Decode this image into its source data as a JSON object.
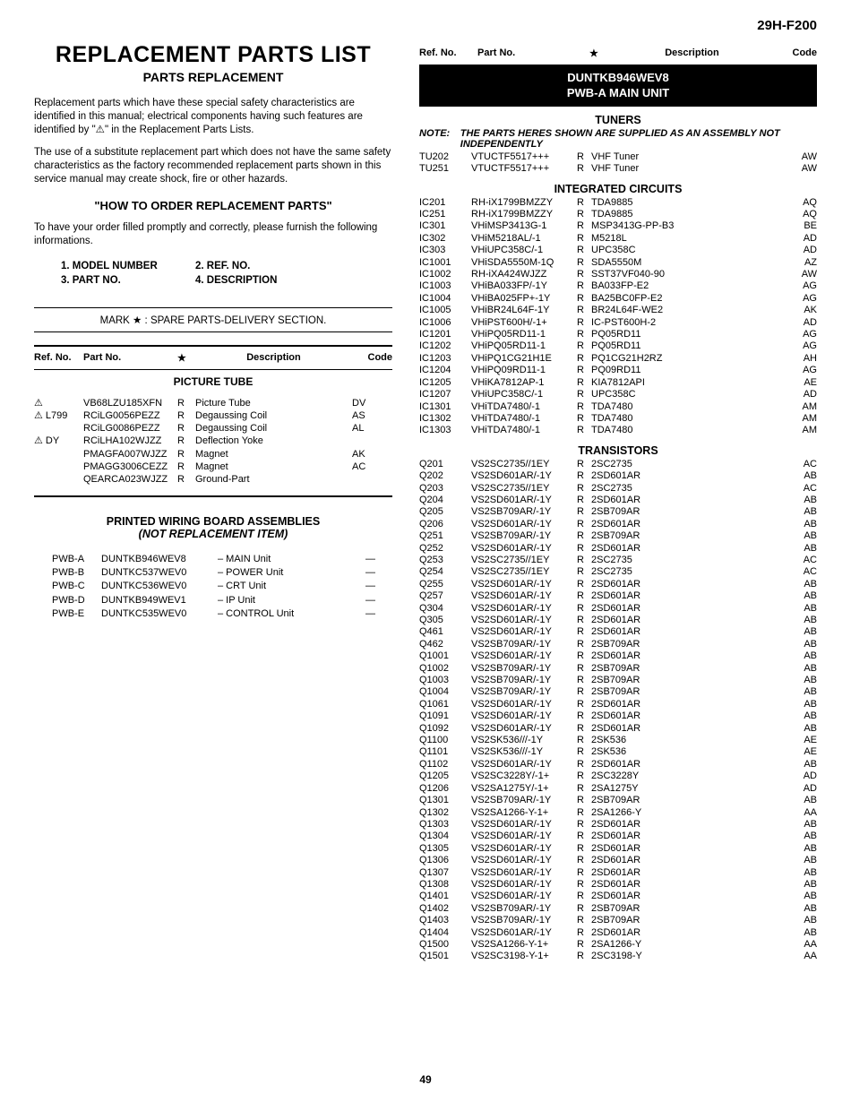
{
  "model": "29H-F200",
  "page_number": "49",
  "title": "REPLACEMENT PARTS LIST",
  "subtitle": "PARTS REPLACEMENT",
  "intro_p1": "Replacement parts which have these special safety characteristics are identified in this manual; electrical components having such features are identified by \"⚠\" in the Replacement Parts Lists.",
  "intro_p2": "The use of a substitute replacement part which does not have the same safety characteristics as the factory recommended replacement parts shown in this service manual may create shock, fire or other hazards.",
  "howto_title": "\"HOW TO ORDER REPLACEMENT PARTS\"",
  "howto_text": "To have your order filled promptly and correctly, please furnish the following informations.",
  "order": {
    "i1": "1.  MODEL NUMBER",
    "i2": "2.  REF. NO.",
    "i3": "3.  PART NO.",
    "i4": "4.  DESCRIPTION"
  },
  "mark_note": "MARK ★  : SPARE PARTS-DELIVERY SECTION.",
  "headers": {
    "ref": "Ref. No.",
    "part": "Part No.",
    "star": "★",
    "desc": "Description",
    "code": "Code"
  },
  "picture_tube": {
    "title": "PICTURE TUBE",
    "rows": [
      {
        "ref": "⚠",
        "part": "VB68LZU185XFN",
        "star": "R",
        "desc": "Picture Tube",
        "code": "DV"
      },
      {
        "ref": "⚠ L799",
        "part": "RCiLG0056PEZZ",
        "star": "R",
        "desc": "Degaussing Coil",
        "code": "AS"
      },
      {
        "ref": "",
        "part": "RCiLG0086PEZZ",
        "star": "R",
        "desc": "Degaussing Coil",
        "code": "AL"
      },
      {
        "ref": "⚠ DY",
        "part": "RCiLHA102WJZZ",
        "star": "R",
        "desc": "Deflection Yoke",
        "code": ""
      },
      {
        "ref": "",
        "part": "PMAGFA007WJZZ",
        "star": "R",
        "desc": "Magnet",
        "code": "AK"
      },
      {
        "ref": "",
        "part": "PMAGG3006CEZZ",
        "star": "R",
        "desc": "Magnet",
        "code": "AC"
      },
      {
        "ref": "",
        "part": "QEARCA023WJZZ",
        "star": "R",
        "desc": "Ground-Part",
        "code": ""
      }
    ]
  },
  "pwb_assemblies": {
    "title": "PRINTED WIRING BOARD ASSEMBLIES",
    "sub": "(NOT REPLACEMENT ITEM)",
    "rows": [
      {
        "ref": "PWB-A",
        "part": "DUNTKB946WEV8",
        "desc": "–  MAIN Unit",
        "code": "—"
      },
      {
        "ref": "PWB-B",
        "part": "DUNTKC537WEV0",
        "desc": "–  POWER Unit",
        "code": "—"
      },
      {
        "ref": "PWB-C",
        "part": "DUNTKC536WEV0",
        "desc": "–  CRT Unit",
        "code": "—"
      },
      {
        "ref": "PWB-D",
        "part": "DUNTKB949WEV1",
        "desc": "–  IP Unit",
        "code": "—"
      },
      {
        "ref": "PWB-E",
        "part": "DUNTKC535WEV0",
        "desc": "–  CONTROL Unit",
        "code": "—"
      }
    ]
  },
  "right_band": {
    "l1": "DUNTKB946WEV8",
    "l2": "PWB-A MAIN UNIT"
  },
  "tuners": {
    "title": "TUNERS",
    "note_label": "NOTE:",
    "note_text": "THE PARTS HERES SHOWN ARE SUPPLIED AS AN ASSEMBLY NOT INDEPENDENTLY",
    "rows": [
      {
        "ref": "TU202",
        "part": "VTUCTF5517+++",
        "star": "R",
        "desc": "VHF Tuner",
        "code": "AW"
      },
      {
        "ref": "TU251",
        "part": "VTUCTF5517+++",
        "star": "R",
        "desc": "VHF Tuner",
        "code": "AW"
      }
    ]
  },
  "ics": {
    "title": "INTEGRATED CIRCUITS",
    "rows": [
      {
        "ref": "IC201",
        "part": "RH-iX1799BMZZY",
        "star": "R",
        "desc": "TDA9885",
        "code": "AQ"
      },
      {
        "ref": "IC251",
        "part": "RH-iX1799BMZZY",
        "star": "R",
        "desc": "TDA9885",
        "code": "AQ"
      },
      {
        "ref": "IC301",
        "part": "VHiMSP3413G-1",
        "star": "R",
        "desc": "MSP3413G-PP-B3",
        "code": "BE"
      },
      {
        "ref": "IC302",
        "part": "VHiM5218AL/-1",
        "star": "R",
        "desc": "M5218L",
        "code": "AD"
      },
      {
        "ref": "IC303",
        "part": "VHiUPC358C/-1",
        "star": "R",
        "desc": "UPC358C",
        "code": "AD"
      },
      {
        "ref": "IC1001",
        "part": "VHiSDA5550M-1Q",
        "star": "R",
        "desc": "SDA5550M",
        "code": "AZ"
      },
      {
        "ref": "IC1002",
        "part": "RH-iXA424WJZZ",
        "star": "R",
        "desc": "SST37VF040-90",
        "code": "AW"
      },
      {
        "ref": "IC1003",
        "part": "VHiBA033FP/-1Y",
        "star": "R",
        "desc": "BA033FP-E2",
        "code": "AG"
      },
      {
        "ref": "IC1004",
        "part": "VHiBA025FP+-1Y",
        "star": "R",
        "desc": "BA25BC0FP-E2",
        "code": "AG"
      },
      {
        "ref": "IC1005",
        "part": "VHiBR24L64F-1Y",
        "star": "R",
        "desc": "BR24L64F-WE2",
        "code": "AK"
      },
      {
        "ref": "IC1006",
        "part": "VHiPST600H/-1+",
        "star": "R",
        "desc": "IC-PST600H-2",
        "code": "AD"
      },
      {
        "ref": "IC1201",
        "part": "VHiPQ05RD11-1",
        "star": "R",
        "desc": "PQ05RD11",
        "code": "AG"
      },
      {
        "ref": "IC1202",
        "part": "VHiPQ05RD11-1",
        "star": "R",
        "desc": "PQ05RD11",
        "code": "AG"
      },
      {
        "ref": "IC1203",
        "part": "VHiPQ1CG21H1E",
        "star": "R",
        "desc": "PQ1CG21H2RZ",
        "code": "AH"
      },
      {
        "ref": "IC1204",
        "part": "VHiPQ09RD11-1",
        "star": "R",
        "desc": "PQ09RD11",
        "code": "AG"
      },
      {
        "ref": "IC1205",
        "part": "VHiKA7812AP-1",
        "star": "R",
        "desc": "KIA7812API",
        "code": "AE"
      },
      {
        "ref": "IC1207",
        "part": "VHiUPC358C/-1",
        "star": "R",
        "desc": "UPC358C",
        "code": "AD"
      },
      {
        "ref": "IC1301",
        "part": "VHiTDA7480/-1",
        "star": "R",
        "desc": "TDA7480",
        "code": "AM"
      },
      {
        "ref": "IC1302",
        "part": "VHiTDA7480/-1",
        "star": "R",
        "desc": "TDA7480",
        "code": "AM"
      },
      {
        "ref": "IC1303",
        "part": "VHiTDA7480/-1",
        "star": "R",
        "desc": "TDA7480",
        "code": "AM"
      }
    ]
  },
  "transistors": {
    "title": "TRANSISTORS",
    "rows": [
      {
        "ref": "Q201",
        "part": "VS2SC2735//1EY",
        "star": "R",
        "desc": "2SC2735",
        "code": "AC"
      },
      {
        "ref": "Q202",
        "part": "VS2SD601AR/-1Y",
        "star": "R",
        "desc": "2SD601AR",
        "code": "AB"
      },
      {
        "ref": "Q203",
        "part": "VS2SC2735//1EY",
        "star": "R",
        "desc": "2SC2735",
        "code": "AC"
      },
      {
        "ref": "Q204",
        "part": "VS2SD601AR/-1Y",
        "star": "R",
        "desc": "2SD601AR",
        "code": "AB"
      },
      {
        "ref": "Q205",
        "part": "VS2SB709AR/-1Y",
        "star": "R",
        "desc": "2SB709AR",
        "code": "AB"
      },
      {
        "ref": "Q206",
        "part": "VS2SD601AR/-1Y",
        "star": "R",
        "desc": "2SD601AR",
        "code": "AB"
      },
      {
        "ref": "Q251",
        "part": "VS2SB709AR/-1Y",
        "star": "R",
        "desc": "2SB709AR",
        "code": "AB"
      },
      {
        "ref": "Q252",
        "part": "VS2SD601AR/-1Y",
        "star": "R",
        "desc": "2SD601AR",
        "code": "AB"
      },
      {
        "ref": "Q253",
        "part": "VS2SC2735//1EY",
        "star": "R",
        "desc": "2SC2735",
        "code": "AC"
      },
      {
        "ref": "Q254",
        "part": "VS2SC2735//1EY",
        "star": "R",
        "desc": "2SC2735",
        "code": "AC"
      },
      {
        "ref": "Q255",
        "part": "VS2SD601AR/-1Y",
        "star": "R",
        "desc": "2SD601AR",
        "code": "AB"
      },
      {
        "ref": "Q257",
        "part": "VS2SD601AR/-1Y",
        "star": "R",
        "desc": "2SD601AR",
        "code": "AB"
      },
      {
        "ref": "Q304",
        "part": "VS2SD601AR/-1Y",
        "star": "R",
        "desc": "2SD601AR",
        "code": "AB"
      },
      {
        "ref": "Q305",
        "part": "VS2SD601AR/-1Y",
        "star": "R",
        "desc": "2SD601AR",
        "code": "AB"
      },
      {
        "ref": "Q461",
        "part": "VS2SD601AR/-1Y",
        "star": "R",
        "desc": "2SD601AR",
        "code": "AB"
      },
      {
        "ref": "Q462",
        "part": "VS2SB709AR/-1Y",
        "star": "R",
        "desc": "2SB709AR",
        "code": "AB"
      },
      {
        "ref": "Q1001",
        "part": "VS2SD601AR/-1Y",
        "star": "R",
        "desc": "2SD601AR",
        "code": "AB"
      },
      {
        "ref": "Q1002",
        "part": "VS2SB709AR/-1Y",
        "star": "R",
        "desc": "2SB709AR",
        "code": "AB"
      },
      {
        "ref": "Q1003",
        "part": "VS2SB709AR/-1Y",
        "star": "R",
        "desc": "2SB709AR",
        "code": "AB"
      },
      {
        "ref": "Q1004",
        "part": "VS2SB709AR/-1Y",
        "star": "R",
        "desc": "2SB709AR",
        "code": "AB"
      },
      {
        "ref": "Q1061",
        "part": "VS2SD601AR/-1Y",
        "star": "R",
        "desc": "2SD601AR",
        "code": "AB"
      },
      {
        "ref": "Q1091",
        "part": "VS2SD601AR/-1Y",
        "star": "R",
        "desc": "2SD601AR",
        "code": "AB"
      },
      {
        "ref": "Q1092",
        "part": "VS2SD601AR/-1Y",
        "star": "R",
        "desc": "2SD601AR",
        "code": "AB"
      },
      {
        "ref": "Q1100",
        "part": "VS2SK536///-1Y",
        "star": "R",
        "desc": "2SK536",
        "code": "AE"
      },
      {
        "ref": "Q1101",
        "part": "VS2SK536///-1Y",
        "star": "R",
        "desc": "2SK536",
        "code": "AE"
      },
      {
        "ref": "Q1102",
        "part": "VS2SD601AR/-1Y",
        "star": "R",
        "desc": "2SD601AR",
        "code": "AB"
      },
      {
        "ref": "Q1205",
        "part": "VS2SC3228Y/-1+",
        "star": "R",
        "desc": "2SC3228Y",
        "code": "AD"
      },
      {
        "ref": "Q1206",
        "part": "VS2SA1275Y/-1+",
        "star": "R",
        "desc": "2SA1275Y",
        "code": "AD"
      },
      {
        "ref": "Q1301",
        "part": "VS2SB709AR/-1Y",
        "star": "R",
        "desc": "2SB709AR",
        "code": "AB"
      },
      {
        "ref": "Q1302",
        "part": "VS2SA1266-Y-1+",
        "star": "R",
        "desc": "2SA1266-Y",
        "code": "AA"
      },
      {
        "ref": "Q1303",
        "part": "VS2SD601AR/-1Y",
        "star": "R",
        "desc": "2SD601AR",
        "code": "AB"
      },
      {
        "ref": "Q1304",
        "part": "VS2SD601AR/-1Y",
        "star": "R",
        "desc": "2SD601AR",
        "code": "AB"
      },
      {
        "ref": "Q1305",
        "part": "VS2SD601AR/-1Y",
        "star": "R",
        "desc": "2SD601AR",
        "code": "AB"
      },
      {
        "ref": "Q1306",
        "part": "VS2SD601AR/-1Y",
        "star": "R",
        "desc": "2SD601AR",
        "code": "AB"
      },
      {
        "ref": "Q1307",
        "part": "VS2SD601AR/-1Y",
        "star": "R",
        "desc": "2SD601AR",
        "code": "AB"
      },
      {
        "ref": "Q1308",
        "part": "VS2SD601AR/-1Y",
        "star": "R",
        "desc": "2SD601AR",
        "code": "AB"
      },
      {
        "ref": "Q1401",
        "part": "VS2SD601AR/-1Y",
        "star": "R",
        "desc": "2SD601AR",
        "code": "AB"
      },
      {
        "ref": "Q1402",
        "part": "VS2SB709AR/-1Y",
        "star": "R",
        "desc": "2SB709AR",
        "code": "AB"
      },
      {
        "ref": "Q1403",
        "part": "VS2SB709AR/-1Y",
        "star": "R",
        "desc": "2SB709AR",
        "code": "AB"
      },
      {
        "ref": "Q1404",
        "part": "VS2SD601AR/-1Y",
        "star": "R",
        "desc": "2SD601AR",
        "code": "AB"
      },
      {
        "ref": "Q1500",
        "part": "VS2SA1266-Y-1+",
        "star": "R",
        "desc": "2SA1266-Y",
        "code": "AA"
      },
      {
        "ref": "Q1501",
        "part": "VS2SC3198-Y-1+",
        "star": "R",
        "desc": "2SC3198-Y",
        "code": "AA"
      }
    ]
  }
}
